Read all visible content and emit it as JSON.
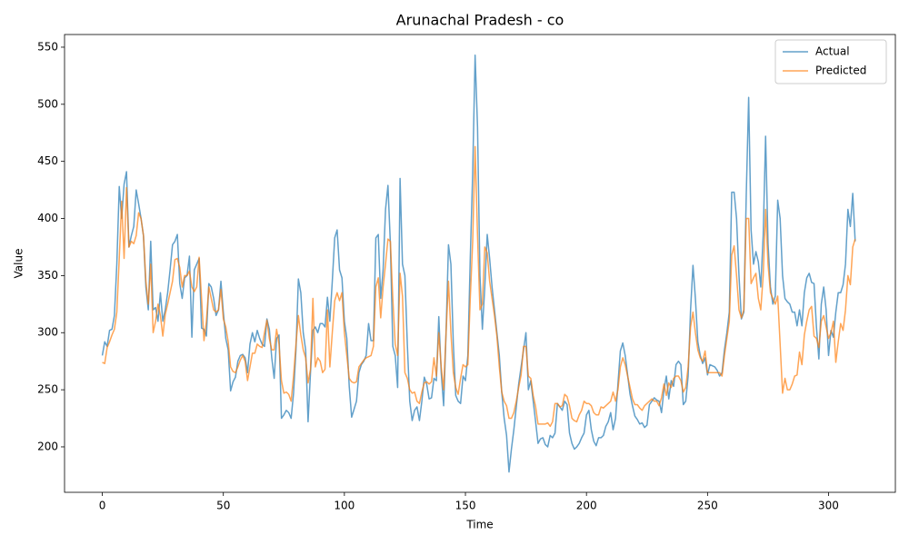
{
  "chart_data": {
    "type": "line",
    "title": "Arunachal Pradesh - co",
    "x_label": "Time",
    "y_label": "Value",
    "xlim": [
      -15.6,
      327.6
    ],
    "ylim": [
      160.2,
      561.1
    ],
    "xticks": [
      0,
      50,
      100,
      150,
      200,
      250,
      300
    ],
    "yticks": [
      200,
      250,
      300,
      350,
      400,
      450,
      500,
      550
    ],
    "legend": "upper right",
    "x": [
      0,
      1,
      2,
      3,
      4,
      5,
      6,
      7,
      8,
      9,
      10,
      11,
      12,
      13,
      14,
      15,
      16,
      17,
      18,
      19,
      20,
      21,
      22,
      23,
      24,
      25,
      26,
      27,
      28,
      29,
      30,
      31,
      32,
      33,
      34,
      35,
      36,
      37,
      38,
      39,
      40,
      41,
      42,
      43,
      44,
      45,
      46,
      47,
      48,
      49,
      50,
      51,
      52,
      53,
      54,
      55,
      56,
      57,
      58,
      59,
      60,
      61,
      62,
      63,
      64,
      65,
      66,
      67,
      68,
      69,
      70,
      71,
      72,
      73,
      74,
      75,
      76,
      77,
      78,
      79,
      80,
      81,
      82,
      83,
      84,
      85,
      86,
      87,
      88,
      89,
      90,
      91,
      92,
      93,
      94,
      95,
      96,
      97,
      98,
      99,
      100,
      101,
      102,
      103,
      104,
      105,
      106,
      107,
      108,
      109,
      110,
      111,
      112,
      113,
      114,
      115,
      116,
      117,
      118,
      119,
      120,
      121,
      122,
      123,
      124,
      125,
      126,
      127,
      128,
      129,
      130,
      131,
      132,
      133,
      134,
      135,
      136,
      137,
      138,
      139,
      140,
      141,
      142,
      143,
      144,
      145,
      146,
      147,
      148,
      149,
      150,
      151,
      152,
      153,
      154,
      155,
      156,
      157,
      158,
      159,
      160,
      161,
      162,
      163,
      164,
      165,
      166,
      167,
      168,
      169,
      170,
      171,
      172,
      173,
      174,
      175,
      176,
      177,
      178,
      179,
      180,
      181,
      182,
      183,
      184,
      185,
      186,
      187,
      188,
      189,
      190,
      191,
      192,
      193,
      194,
      195,
      196,
      197,
      198,
      199,
      200,
      201,
      202,
      203,
      204,
      205,
      206,
      207,
      208,
      209,
      210,
      211,
      212,
      213,
      214,
      215,
      216,
      217,
      218,
      219,
      220,
      221,
      222,
      223,
      224,
      225,
      226,
      227,
      228,
      229,
      230,
      231,
      232,
      233,
      234,
      235,
      236,
      237,
      238,
      239,
      240,
      241,
      242,
      243,
      244,
      245,
      246,
      247,
      248,
      249,
      250,
      251,
      252,
      253,
      254,
      255,
      256,
      257,
      258,
      259,
      260,
      261,
      262,
      263,
      264,
      265,
      266,
      267,
      268,
      269,
      270,
      271,
      272,
      273,
      274,
      275,
      276,
      277,
      278,
      279,
      280,
      281,
      282,
      283,
      284,
      285,
      286,
      287,
      288,
      289,
      290,
      291,
      292,
      293,
      294,
      295,
      296,
      297,
      298,
      299,
      300,
      301,
      302,
      303,
      304,
      305,
      306,
      307,
      308,
      309,
      310,
      311
    ],
    "series": [
      {
        "name": "Actual",
        "color": "#1f77b4",
        "values": [
          280,
          292,
          288,
          302,
          303,
          315,
          360,
          428,
          400,
          430,
          441,
          375,
          385,
          393,
          425,
          413,
          400,
          385,
          340,
          320,
          380,
          320,
          322,
          310,
          335,
          310,
          320,
          335,
          355,
          377,
          380,
          386,
          343,
          330,
          348,
          350,
          367,
          296,
          355,
          360,
          365,
          304,
          303,
          297,
          343,
          340,
          330,
          315,
          320,
          345,
          318,
          295,
          285,
          249,
          257,
          261,
          275,
          280,
          281,
          278,
          265,
          290,
          300,
          292,
          302,
          295,
          290,
          288,
          312,
          303,
          278,
          260,
          295,
          298,
          225,
          228,
          232,
          230,
          225,
          247,
          285,
          347,
          335,
          300,
          285,
          222,
          265,
          302,
          305,
          300,
          308,
          308,
          305,
          331,
          310,
          345,
          383,
          390,
          355,
          348,
          310,
          295,
          253,
          226,
          233,
          240,
          265,
          272,
          275,
          280,
          308,
          293,
          293,
          383,
          386,
          330,
          355,
          408,
          429,
          378,
          288,
          280,
          252,
          435,
          360,
          350,
          290,
          240,
          223,
          232,
          235,
          223,
          240,
          261,
          255,
          242,
          243,
          260,
          258,
          314,
          265,
          236,
          300,
          377,
          360,
          290,
          245,
          240,
          238,
          262,
          258,
          280,
          365,
          440,
          543,
          480,
          350,
          303,
          340,
          386,
          365,
          340,
          320,
          300,
          280,
          248,
          225,
          210,
          178,
          198,
          215,
          235,
          255,
          270,
          285,
          300,
          250,
          258,
          240,
          222,
          203,
          207,
          208,
          202,
          200,
          210,
          208,
          212,
          238,
          235,
          232,
          240,
          237,
          212,
          203,
          198,
          200,
          203,
          208,
          212,
          228,
          232,
          215,
          205,
          201,
          208,
          208,
          210,
          218,
          222,
          230,
          215,
          225,
          255,
          284,
          291,
          280,
          263,
          246,
          236,
          227,
          224,
          220,
          221,
          217,
          219,
          237,
          240,
          243,
          241,
          240,
          230,
          250,
          262,
          242,
          258,
          253,
          272,
          275,
          272,
          237,
          240,
          262,
          320,
          359,
          330,
          292,
          280,
          273,
          278,
          263,
          272,
          271,
          270,
          267,
          262,
          265,
          285,
          300,
          318,
          423,
          423,
          400,
          350,
          312,
          318,
          420,
          506,
          390,
          360,
          371,
          362,
          340,
          385,
          472,
          378,
          340,
          325,
          332,
          416,
          400,
          350,
          330,
          327,
          325,
          318,
          318,
          306,
          320,
          306,
          335,
          348,
          352,
          344,
          343,
          305,
          277,
          325,
          340,
          320,
          280,
          302,
          296,
          318,
          335,
          335,
          342,
          360,
          408,
          393,
          422,
          380
        ]
      },
      {
        "name": "Predicted",
        "color": "#ff7f0e",
        "values": [
          274,
          273,
          287,
          292,
          298,
          303,
          318,
          365,
          415,
          365,
          427,
          375,
          380,
          378,
          385,
          405,
          400,
          385,
          345,
          325,
          360,
          300,
          310,
          325,
          315,
          297,
          316,
          325,
          335,
          345,
          364,
          365,
          357,
          340,
          350,
          350,
          354,
          340,
          336,
          340,
          366,
          330,
          293,
          310,
          340,
          330,
          320,
          318,
          320,
          338,
          312,
          305,
          292,
          270,
          266,
          265,
          270,
          276,
          280,
          275,
          258,
          270,
          282,
          282,
          290,
          288,
          287,
          300,
          311,
          295,
          285,
          285,
          303,
          290,
          258,
          247,
          248,
          246,
          240,
          262,
          290,
          315,
          298,
          285,
          278,
          256,
          268,
          330,
          270,
          278,
          275,
          265,
          268,
          320,
          270,
          300,
          328,
          335,
          328,
          335,
          300,
          280,
          260,
          257,
          256,
          257,
          270,
          273,
          276,
          278,
          279,
          280,
          288,
          340,
          348,
          313,
          340,
          360,
          382,
          380,
          330,
          290,
          280,
          352,
          332,
          265,
          260,
          250,
          247,
          248,
          240,
          238,
          248,
          256,
          257,
          255,
          257,
          278,
          262,
          300,
          270,
          250,
          300,
          345,
          300,
          265,
          252,
          246,
          260,
          272,
          270,
          272,
          330,
          380,
          463,
          385,
          320,
          325,
          375,
          370,
          345,
          330,
          315,
          297,
          270,
          248,
          240,
          236,
          225,
          225,
          230,
          240,
          252,
          263,
          288,
          288,
          262,
          260,
          245,
          235,
          220,
          220,
          220,
          220,
          221,
          218,
          222,
          238,
          238,
          235,
          236,
          246,
          244,
          236,
          225,
          223,
          222,
          228,
          232,
          240,
          238,
          238,
          236,
          230,
          228,
          228,
          235,
          234,
          236,
          238,
          240,
          248,
          240,
          250,
          270,
          278,
          272,
          262,
          252,
          242,
          237,
          237,
          234,
          232,
          236,
          238,
          240,
          242,
          240,
          240,
          236,
          243,
          255,
          245,
          256,
          252,
          260,
          262,
          262,
          258,
          248,
          252,
          270,
          305,
          318,
          300,
          285,
          278,
          275,
          284,
          265,
          265,
          265,
          265,
          265,
          265,
          262,
          280,
          295,
          310,
          368,
          376,
          350,
          320,
          313,
          320,
          400,
          400,
          343,
          348,
          352,
          330,
          320,
          350,
          408,
          360,
          335,
          330,
          325,
          332,
          290,
          247,
          260,
          250,
          250,
          255,
          262,
          263,
          283,
          272,
          298,
          310,
          320,
          323,
          297,
          295,
          287,
          310,
          315,
          305,
          295,
          300,
          310,
          274,
          292,
          308,
          302,
          320,
          350,
          342,
          375,
          382
        ]
      }
    ]
  }
}
